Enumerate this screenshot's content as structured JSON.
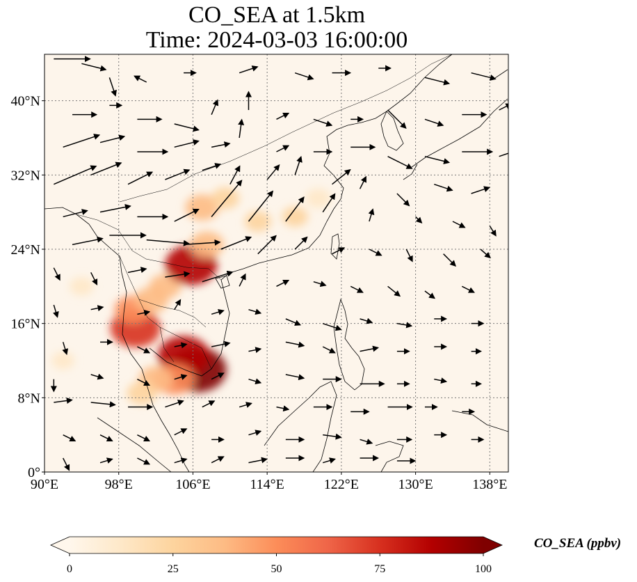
{
  "title": {
    "line1": "CO_SEA at 1.5km",
    "line2": "Time: 2024-03-03 16:00:00"
  },
  "map": {
    "lon_range": [
      90,
      140
    ],
    "lat_range": [
      0,
      45
    ],
    "lon_ticks": [
      {
        "value": 90,
        "label": "90°E"
      },
      {
        "value": 98,
        "label": "98°E"
      },
      {
        "value": 106,
        "label": "106°E"
      },
      {
        "value": 114,
        "label": "114°E"
      },
      {
        "value": 122,
        "label": "122°E"
      },
      {
        "value": 130,
        "label": "130°E"
      },
      {
        "value": 138,
        "label": "138°E"
      }
    ],
    "lat_ticks": [
      {
        "value": 0,
        "label": "0°"
      },
      {
        "value": 8,
        "label": "8°N"
      },
      {
        "value": 16,
        "label": "16°N"
      },
      {
        "value": 24,
        "label": "24°N"
      },
      {
        "value": 32,
        "label": "32°N"
      },
      {
        "value": 40,
        "label": "40°N"
      }
    ],
    "background_color": "#fdf5eb",
    "hotspots": [
      {
        "lon": 106.5,
        "lat": 11.0,
        "value": 100
      },
      {
        "lon": 105.0,
        "lat": 12.5,
        "value": 85
      },
      {
        "lon": 104.0,
        "lat": 10.0,
        "value": 55
      },
      {
        "lon": 102.0,
        "lat": 10.0,
        "value": 40
      },
      {
        "lon": 100.5,
        "lat": 8.5,
        "value": 30
      },
      {
        "lon": 99.8,
        "lat": 15.5,
        "value": 80
      },
      {
        "lon": 99.5,
        "lat": 17.5,
        "value": 45
      },
      {
        "lon": 101.5,
        "lat": 18.5,
        "value": 40
      },
      {
        "lon": 103.0,
        "lat": 20.0,
        "value": 35
      },
      {
        "lon": 105.8,
        "lat": 22.3,
        "value": 85
      },
      {
        "lon": 107.5,
        "lat": 24.5,
        "value": 40
      },
      {
        "lon": 107.0,
        "lat": 28.5,
        "value": 40
      },
      {
        "lon": 109.5,
        "lat": 29.5,
        "value": 25
      },
      {
        "lon": 113.0,
        "lat": 27.0,
        "value": 22
      },
      {
        "lon": 117.0,
        "lat": 27.5,
        "value": 20
      },
      {
        "lon": 119.5,
        "lat": 29.5,
        "value": 18
      },
      {
        "lon": 94.0,
        "lat": 20.0,
        "value": 15
      },
      {
        "lon": 92.0,
        "lat": 12.0,
        "value": 12
      }
    ],
    "wind_vectors": [
      [
        91,
        44.5,
        3,
        0
      ],
      [
        94,
        44,
        2,
        -0.5
      ],
      [
        97,
        42.5,
        0.5,
        -1.5
      ],
      [
        101,
        42,
        -1,
        0.5
      ],
      [
        105,
        43,
        1,
        0
      ],
      [
        111,
        43,
        1.5,
        0.5
      ],
      [
        117,
        43,
        1.5,
        -0.5
      ],
      [
        121,
        43,
        1.5,
        0
      ],
      [
        126,
        43.5,
        1,
        0
      ],
      [
        131,
        42.5,
        2,
        -0.5
      ],
      [
        136,
        43,
        2,
        -0.5
      ],
      [
        93,
        38.5,
        2,
        0
      ],
      [
        97,
        39.5,
        1,
        0
      ],
      [
        100,
        38,
        2,
        0
      ],
      [
        104,
        37.5,
        2,
        -0.5
      ],
      [
        108,
        38.5,
        0.5,
        1.2
      ],
      [
        112,
        39,
        0,
        1.5
      ],
      [
        115,
        38,
        1,
        0.5
      ],
      [
        119,
        38,
        1.5,
        -0.5
      ],
      [
        123,
        38,
        1,
        0
      ],
      [
        127,
        39,
        1.5,
        -1.5
      ],
      [
        131,
        38,
        1.5,
        -0.5
      ],
      [
        135,
        38.5,
        2,
        0
      ],
      [
        139,
        39,
        1,
        0.5
      ],
      [
        92,
        35,
        3,
        1
      ],
      [
        96,
        35.5,
        2,
        0.5
      ],
      [
        100,
        34.5,
        2.5,
        0
      ],
      [
        104,
        35,
        2,
        0.5
      ],
      [
        108,
        35,
        1.5,
        0.3
      ],
      [
        111,
        36,
        0.2,
        1.5
      ],
      [
        115,
        34.5,
        1,
        0.5
      ],
      [
        119,
        34.5,
        1.5,
        0
      ],
      [
        123,
        35,
        2,
        0
      ],
      [
        127,
        34,
        2,
        -1
      ],
      [
        131,
        34,
        2,
        -0.5
      ],
      [
        135,
        34.5,
        2.5,
        0
      ],
      [
        139,
        34,
        1.5,
        0.5
      ],
      [
        91,
        31,
        3.5,
        1.5
      ],
      [
        95,
        32,
        2.5,
        1
      ],
      [
        99,
        31,
        2,
        1
      ],
      [
        103,
        31.5,
        2,
        0.8
      ],
      [
        107,
        32.5,
        1.5,
        0.5
      ],
      [
        110,
        31,
        0.8,
        1.5
      ],
      [
        114,
        31.5,
        1,
        1.2
      ],
      [
        117,
        32,
        0.5,
        1.5
      ],
      [
        121,
        31,
        1.5,
        1.2
      ],
      [
        124,
        30.5,
        0.5,
        1
      ],
      [
        128,
        30,
        1,
        -1
      ],
      [
        132,
        31,
        1.5,
        -0.5
      ],
      [
        136,
        30,
        1.5,
        0.5
      ],
      [
        92,
        27.5,
        2,
        0.5
      ],
      [
        96,
        28,
        2.5,
        0.5
      ],
      [
        100,
        27.5,
        2.5,
        0
      ],
      [
        104,
        27,
        2,
        1
      ],
      [
        108,
        27.5,
        2.5,
        3
      ],
      [
        112,
        27,
        2,
        2.5
      ],
      [
        116,
        27,
        1.5,
        2
      ],
      [
        120,
        28,
        1,
        1.5
      ],
      [
        125,
        27,
        0.3,
        1
      ],
      [
        130,
        27.5,
        0.5,
        -0.5
      ],
      [
        134,
        27,
        1,
        -0.5
      ],
      [
        138,
        26.5,
        0.5,
        -0.8
      ],
      [
        93,
        24.5,
        2.5,
        0.5
      ],
      [
        97,
        25.5,
        3,
        0
      ],
      [
        101,
        25,
        3.5,
        -0.3
      ],
      [
        105,
        24.5,
        3,
        0.2
      ],
      [
        109,
        24,
        2.5,
        1
      ],
      [
        113,
        23.5,
        1.5,
        1.5
      ],
      [
        117,
        24,
        1,
        1
      ],
      [
        121,
        23.5,
        1,
        0.5
      ],
      [
        125,
        24,
        1,
        -0.5
      ],
      [
        129,
        24,
        0.5,
        -1
      ],
      [
        133,
        23.5,
        1,
        -1
      ],
      [
        137,
        24,
        0.8,
        -0.7
      ],
      [
        91,
        22,
        0.5,
        -1
      ],
      [
        95,
        21.5,
        0.5,
        -1
      ],
      [
        99,
        21.5,
        1.5,
        0.3
      ],
      [
        103,
        21,
        2,
        0.3
      ],
      [
        107,
        20.5,
        2.5,
        0.8
      ],
      [
        111,
        20,
        0.5,
        1
      ],
      [
        115,
        20,
        1,
        0.5
      ],
      [
        119,
        20.5,
        1,
        -0.3
      ],
      [
        123,
        20,
        1,
        -0.5
      ],
      [
        127,
        20,
        1,
        -0.8
      ],
      [
        131,
        19.5,
        0.8,
        -0.6
      ],
      [
        135,
        20,
        1,
        -0.5
      ],
      [
        91,
        18,
        0.3,
        -1
      ],
      [
        95,
        17.5,
        1,
        0.2
      ],
      [
        100,
        17,
        1,
        0.2
      ],
      [
        104,
        17.5,
        0.5,
        0.8
      ],
      [
        108,
        17,
        1,
        0.3
      ],
      [
        112,
        17.5,
        1,
        -0.3
      ],
      [
        116,
        16.5,
        1.2,
        -0.5
      ],
      [
        120,
        16,
        1.5,
        -0.5
      ],
      [
        124,
        16.5,
        1,
        -0.3
      ],
      [
        128,
        16,
        1.2,
        -0.2
      ],
      [
        132,
        16.5,
        1,
        0
      ],
      [
        136,
        16,
        1,
        0
      ],
      [
        92,
        14,
        0.3,
        -1
      ],
      [
        96,
        14,
        1,
        0
      ],
      [
        100,
        13.5,
        1,
        -0.5
      ],
      [
        104,
        13.5,
        1,
        0.2
      ],
      [
        108,
        13.5,
        1.5,
        0.3
      ],
      [
        112,
        13,
        1,
        0.2
      ],
      [
        116,
        14,
        1.5,
        -0.3
      ],
      [
        120,
        13.5,
        1,
        -0.5
      ],
      [
        124,
        13,
        1.5,
        0.3
      ],
      [
        128,
        13,
        1,
        0
      ],
      [
        132,
        13.5,
        1,
        0
      ],
      [
        136,
        13,
        0.8,
        0
      ],
      [
        91,
        10,
        0,
        -1
      ],
      [
        95,
        10.5,
        1,
        -0.3
      ],
      [
        100,
        10,
        1,
        -0.5
      ],
      [
        104,
        10,
        1,
        0.3
      ],
      [
        108,
        10,
        1,
        0.5
      ],
      [
        112,
        10,
        1,
        -0.3
      ],
      [
        116,
        10.5,
        1.5,
        -0.3
      ],
      [
        120,
        10,
        1.5,
        0
      ],
      [
        124,
        9.5,
        2,
        0
      ],
      [
        128,
        9.5,
        1,
        0
      ],
      [
        132,
        10,
        1,
        -0.2
      ],
      [
        136,
        9.5,
        0.8,
        0
      ],
      [
        91,
        7.5,
        1.5,
        0.2
      ],
      [
        95,
        7.5,
        2,
        -0.2
      ],
      [
        99,
        7,
        2,
        0
      ],
      [
        103,
        7,
        1.5,
        0.5
      ],
      [
        107,
        7,
        1,
        0.5
      ],
      [
        111,
        7,
        1,
        0.3
      ],
      [
        115,
        7,
        1,
        -0.2
      ],
      [
        119,
        7,
        1.5,
        0
      ],
      [
        123,
        6.5,
        1.5,
        0
      ],
      [
        127,
        7,
        2,
        0
      ],
      [
        131,
        7,
        1,
        0
      ],
      [
        135,
        6.5,
        1,
        0
      ],
      [
        92,
        4,
        1,
        -0.5
      ],
      [
        96,
        4,
        1,
        -0.5
      ],
      [
        100,
        4,
        1,
        -0.5
      ],
      [
        104,
        4,
        1,
        0.5
      ],
      [
        108,
        3.5,
        1,
        0
      ],
      [
        112,
        4,
        1,
        0.3
      ],
      [
        116,
        3.5,
        1.5,
        0
      ],
      [
        120,
        4,
        1.5,
        -0.2
      ],
      [
        124,
        3.5,
        1,
        -0.3
      ],
      [
        128,
        3.5,
        1.2,
        0
      ],
      [
        132,
        4,
        1,
        0
      ],
      [
        136,
        3.5,
        1,
        0
      ],
      [
        92,
        1.5,
        0.5,
        -1
      ],
      [
        96,
        1,
        1,
        0.3
      ],
      [
        100,
        1.5,
        1,
        -0.5
      ],
      [
        104,
        1,
        1,
        0.3
      ],
      [
        108,
        1,
        1,
        0.5
      ],
      [
        112,
        1,
        1.5,
        0.3
      ],
      [
        116,
        1.5,
        1.5,
        0
      ],
      [
        120,
        1,
        1,
        0.3
      ],
      [
        124,
        1.5,
        1.5,
        0
      ],
      [
        128,
        1.2,
        1.5,
        0
      ]
    ],
    "wind_scale_deg_per_unit": 1.3
  },
  "colorbar": {
    "label": "CO_SEA (ppbv)",
    "min": 0,
    "max": 100,
    "ticks": [
      {
        "value": 0,
        "label": "0"
      },
      {
        "value": 25,
        "label": "25"
      },
      {
        "value": 50,
        "label": "50"
      },
      {
        "value": 75,
        "label": "75"
      },
      {
        "value": 100,
        "label": "100"
      }
    ],
    "colors": [
      "#fff7ec",
      "#fee8c8",
      "#fdd49e",
      "#fdbb84",
      "#fc8d59",
      "#ef6548",
      "#d7301f",
      "#b30000",
      "#7f0000"
    ]
  }
}
